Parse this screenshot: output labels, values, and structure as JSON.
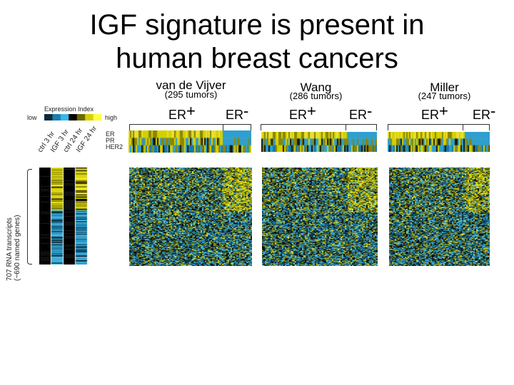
{
  "slide": {
    "title_line1": "IGF signature is present in",
    "title_line2": "human breast cancers"
  },
  "legend": {
    "title": "Expression Index",
    "low": "low",
    "high": "high",
    "colors": [
      "#0a2a3a",
      "#1a7fb0",
      "#3ab8e6",
      "#000000",
      "#6b6b00",
      "#d6d000",
      "#ffff40"
    ]
  },
  "conditions": [
    "ctrl 3 hr",
    "IGF 3 hr",
    "ctrl 24 hr",
    "IGF 24 hr"
  ],
  "row_labels": [
    "ER",
    "PR",
    "HER2"
  ],
  "transcripts_label_line1": "707 RNA transcripts",
  "transcripts_label_line2": "(~690 named genes)",
  "studies": [
    {
      "name": "van de Vijver",
      "count": "(295 tumors)",
      "er_pos": "ER",
      "er_pos_sign": "+",
      "er_neg": "ER",
      "er_neg_sign": "-"
    },
    {
      "name": "Wang",
      "count": "(286 tumors)",
      "er_pos": "ER",
      "er_pos_sign": "+",
      "er_neg": "ER",
      "er_neg_sign": "-"
    },
    {
      "name": "Miller",
      "count": "(247 tumors)",
      "er_pos": "ER",
      "er_pos_sign": "+",
      "er_neg": "ER",
      "er_neg_sign": "-"
    }
  ]
}
